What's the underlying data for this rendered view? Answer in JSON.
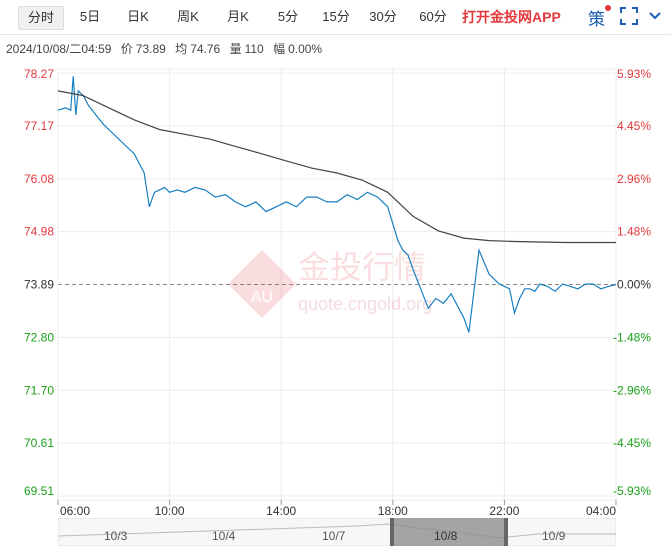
{
  "tabs": [
    {
      "label": "分时",
      "active": true
    },
    {
      "label": "5日"
    },
    {
      "label": "日K"
    },
    {
      "label": "周K"
    },
    {
      "label": "月K"
    },
    {
      "label": "5分"
    },
    {
      "label": "15分"
    },
    {
      "label": "30分"
    },
    {
      "label": "60分"
    }
  ],
  "app_link": "打开金投网APP",
  "strategy_label": "策",
  "info": {
    "datetime": "2024/10/08/二04:59",
    "price_label": "价",
    "price": "73.89",
    "avg_label": "均",
    "avg": "74.76",
    "vol_label": "量",
    "vol": "110",
    "amp_label": "幅",
    "amp": "0.00%"
  },
  "watermark": {
    "text": "金投行情",
    "url": "quote.cngold.org",
    "logo_text": "AU"
  },
  "colors": {
    "up": "#e4393c",
    "down": "#1aa01a",
    "price_line": "#1a7fc1",
    "avg_line": "#444444",
    "grid": "#ececec",
    "ref_line": "#888888"
  },
  "chart_data": {
    "type": "line",
    "title": "",
    "ylim": [
      69.51,
      78.27
    ],
    "reference_price": 73.89,
    "y_ticks": [
      "78.27",
      "77.17",
      "76.08",
      "74.98",
      "73.89",
      "72.80",
      "71.70",
      "70.61",
      "69.51"
    ],
    "pct_ticks": [
      "5.93%",
      "4.45%",
      "2.96%",
      "1.48%",
      "0.00%",
      "-1.48%",
      "-2.96%",
      "-4.45%",
      "-5.93%"
    ],
    "x_ticks": [
      "06:00",
      "10:00",
      "14:00",
      "18:00",
      "22:00",
      "04:00"
    ],
    "x_range_hours": [
      0,
      22
    ],
    "series": [
      {
        "key": "price",
        "x": [
          0,
          0.3,
          0.5,
          0.6,
          0.7,
          0.8,
          1.0,
          1.2,
          1.5,
          1.8,
          2.2,
          2.6,
          3.0,
          3.4,
          3.6,
          3.8,
          4.0,
          4.2,
          4.4,
          4.7,
          5.0,
          5.4,
          5.8,
          6.2,
          6.6,
          7.0,
          7.4,
          7.8,
          8.2,
          8.6,
          9.0,
          9.4,
          9.8,
          10.2,
          10.6,
          11.0,
          11.4,
          11.8,
          12.2,
          12.6,
          13.0,
          13.4,
          13.6,
          13.8,
          14.0,
          14.3,
          14.6,
          14.9,
          15.2,
          15.5,
          15.8,
          16.0,
          16.2,
          16.6,
          17.0,
          17.4,
          17.8,
          18.0,
          18.2,
          18.4,
          18.6,
          18.8,
          19.0,
          19.3,
          19.6,
          19.9,
          20.2,
          20.5,
          20.8,
          21.1,
          21.4,
          21.7,
          22.0
        ],
        "y": [
          77.5,
          77.55,
          77.5,
          78.2,
          77.4,
          77.9,
          77.8,
          77.6,
          77.4,
          77.2,
          77.0,
          76.8,
          76.6,
          76.2,
          75.5,
          75.8,
          75.85,
          75.9,
          75.8,
          75.85,
          75.8,
          75.9,
          75.85,
          75.7,
          75.75,
          75.6,
          75.5,
          75.6,
          75.4,
          75.5,
          75.6,
          75.5,
          75.7,
          75.7,
          75.6,
          75.6,
          75.75,
          75.65,
          75.8,
          75.7,
          75.5,
          74.8,
          74.6,
          74.5,
          74.2,
          73.8,
          73.4,
          73.6,
          73.5,
          73.7,
          73.4,
          73.2,
          72.9,
          74.6,
          74.1,
          73.9,
          73.8,
          73.3,
          73.6,
          73.8,
          73.8,
          73.75,
          73.9,
          73.85,
          73.75,
          73.9,
          73.85,
          73.8,
          73.9,
          73.9,
          73.8,
          73.85,
          73.89
        ]
      },
      {
        "key": "avg",
        "x": [
          0,
          1,
          2,
          3,
          4,
          5,
          6,
          7,
          8,
          9,
          10,
          11,
          12,
          13,
          14,
          15,
          16,
          17,
          18,
          19,
          20,
          21,
          22
        ],
        "y": [
          77.9,
          77.8,
          77.55,
          77.3,
          77.1,
          77.0,
          76.9,
          76.75,
          76.6,
          76.45,
          76.3,
          76.2,
          76.05,
          75.8,
          75.3,
          75.0,
          74.85,
          74.8,
          74.78,
          74.77,
          74.76,
          74.76,
          74.76
        ]
      }
    ]
  },
  "slider": {
    "labels": [
      "10/3",
      "10/4",
      "10/7",
      "10/8",
      "10/9"
    ]
  }
}
